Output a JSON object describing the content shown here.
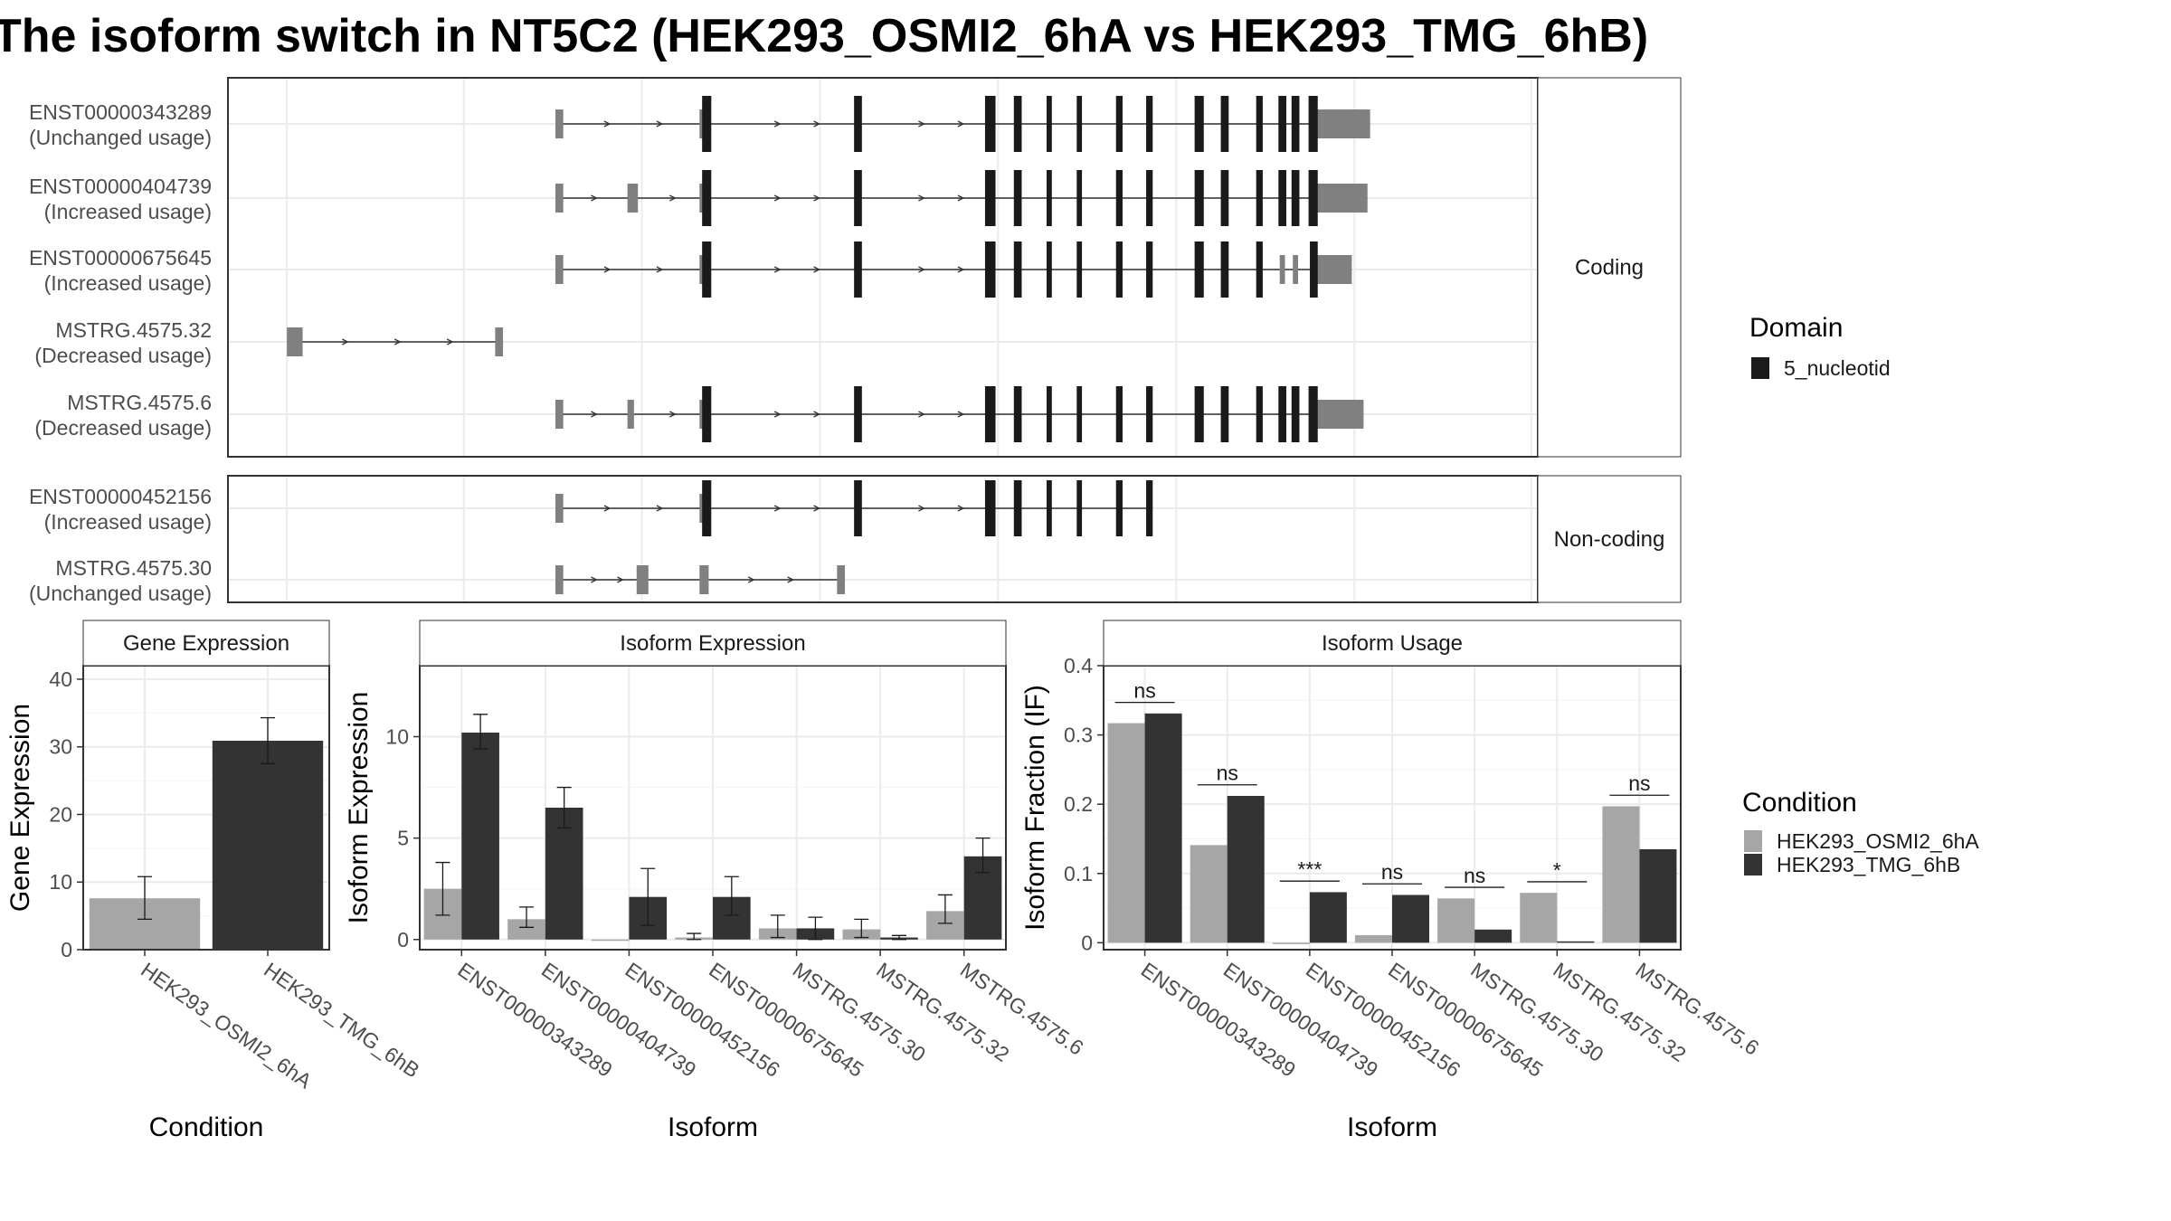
{
  "title": "The isoform switch in NT5C2 (HEK293_OSMI2_6hA vs HEK293_TMG_6hB)",
  "colors": {
    "condition_a": "#a6a6a6",
    "condition_b": "#333333",
    "domain": "#1a1a1a",
    "exon": "#808080",
    "strip_bg": "#ffffff",
    "grid": "#ebebeb"
  },
  "chart_data": [
    {
      "type": "gene-structure",
      "panels": [
        {
          "strip_label": "Coding",
          "isoforms": [
            {
              "id": "ENST00000343289",
              "usage": "(Unchanged usage)",
              "utr": [
                [
                  0.25,
                  0.256
                ],
                [
                  0.36,
                  0.364
                ],
                [
                  0.83,
                  0.872
                ]
              ],
              "exons": [
                [
                  0.362,
                  0.369
                ],
                [
                  0.478,
                  0.484
                ],
                [
                  0.578,
                  0.586
                ],
                [
                  0.6,
                  0.606
                ],
                [
                  0.625,
                  0.629
                ],
                [
                  0.648,
                  0.652
                ],
                [
                  0.678,
                  0.683
                ],
                [
                  0.701,
                  0.706
                ],
                [
                  0.738,
                  0.745
                ],
                [
                  0.758,
                  0.764
                ],
                [
                  0.785,
                  0.79
                ],
                [
                  0.802,
                  0.808
                ],
                [
                  0.812,
                  0.818
                ],
                [
                  0.825,
                  0.832
                ]
              ],
              "arrows": [
                0.29,
                0.33,
                0.42,
                0.45,
                0.53,
                0.56
              ]
            },
            {
              "id": "ENST00000404739",
              "usage": "(Increased usage)",
              "utr": [
                [
                  0.25,
                  0.256
                ],
                [
                  0.305,
                  0.313
                ],
                [
                  0.36,
                  0.364
                ],
                [
                  0.83,
                  0.87
                ]
              ],
              "exons": [
                [
                  0.362,
                  0.369
                ],
                [
                  0.478,
                  0.484
                ],
                [
                  0.578,
                  0.586
                ],
                [
                  0.6,
                  0.606
                ],
                [
                  0.625,
                  0.629
                ],
                [
                  0.648,
                  0.652
                ],
                [
                  0.678,
                  0.683
                ],
                [
                  0.701,
                  0.706
                ],
                [
                  0.738,
                  0.745
                ],
                [
                  0.758,
                  0.764
                ],
                [
                  0.785,
                  0.79
                ],
                [
                  0.802,
                  0.808
                ],
                [
                  0.812,
                  0.818
                ],
                [
                  0.825,
                  0.832
                ]
              ],
              "arrows": [
                0.28,
                0.34,
                0.42,
                0.45,
                0.53,
                0.56
              ]
            },
            {
              "id": "ENST00000675645",
              "usage": "(Increased usage)",
              "utr": [
                [
                  0.25,
                  0.256
                ],
                [
                  0.36,
                  0.364
                ],
                [
                  0.803,
                  0.807
                ],
                [
                  0.813,
                  0.817
                ],
                [
                  0.83,
                  0.858
                ]
              ],
              "exons": [
                [
                  0.362,
                  0.369
                ],
                [
                  0.478,
                  0.484
                ],
                [
                  0.578,
                  0.586
                ],
                [
                  0.6,
                  0.606
                ],
                [
                  0.625,
                  0.629
                ],
                [
                  0.648,
                  0.652
                ],
                [
                  0.678,
                  0.683
                ],
                [
                  0.701,
                  0.706
                ],
                [
                  0.738,
                  0.745
                ],
                [
                  0.758,
                  0.764
                ],
                [
                  0.785,
                  0.79
                ],
                [
                  0.826,
                  0.832
                ]
              ],
              "arrows": [
                0.29,
                0.33,
                0.42,
                0.45,
                0.53,
                0.56
              ]
            },
            {
              "id": "MSTRG.4575.32",
              "usage": "(Decreased usage)",
              "utr": [
                [
                  0.045,
                  0.057
                ],
                [
                  0.204,
                  0.21
                ]
              ],
              "exons": [],
              "arrows": [
                0.09,
                0.13,
                0.17
              ]
            },
            {
              "id": "MSTRG.4575.6",
              "usage": "(Decreased usage)",
              "utr": [
                [
                  0.25,
                  0.256
                ],
                [
                  0.305,
                  0.31
                ],
                [
                  0.36,
                  0.364
                ],
                [
                  0.83,
                  0.867
                ]
              ],
              "exons": [
                [
                  0.362,
                  0.369
                ],
                [
                  0.478,
                  0.484
                ],
                [
                  0.578,
                  0.586
                ],
                [
                  0.6,
                  0.606
                ],
                [
                  0.625,
                  0.629
                ],
                [
                  0.648,
                  0.652
                ],
                [
                  0.678,
                  0.683
                ],
                [
                  0.701,
                  0.706
                ],
                [
                  0.738,
                  0.745
                ],
                [
                  0.758,
                  0.764
                ],
                [
                  0.785,
                  0.79
                ],
                [
                  0.802,
                  0.808
                ],
                [
                  0.812,
                  0.818
                ],
                [
                  0.825,
                  0.832
                ]
              ],
              "arrows": [
                0.28,
                0.34,
                0.42,
                0.45,
                0.53,
                0.56
              ]
            }
          ]
        },
        {
          "strip_label": "Non-coding",
          "isoforms": [
            {
              "id": "ENST00000452156",
              "usage": "(Increased usage)",
              "utr": [
                [
                  0.25,
                  0.256
                ],
                [
                  0.36,
                  0.364
                ]
              ],
              "exons": [
                [
                  0.362,
                  0.369
                ],
                [
                  0.478,
                  0.484
                ],
                [
                  0.578,
                  0.586
                ],
                [
                  0.6,
                  0.606
                ],
                [
                  0.625,
                  0.629
                ],
                [
                  0.648,
                  0.652
                ],
                [
                  0.678,
                  0.683
                ],
                [
                  0.701,
                  0.706
                ]
              ],
              "arrows": [
                0.29,
                0.33,
                0.42,
                0.45,
                0.53,
                0.56
              ]
            },
            {
              "id": "MSTRG.4575.30",
              "usage": "(Unchanged usage)",
              "utr": [
                [
                  0.25,
                  0.256
                ],
                [
                  0.312,
                  0.321
                ],
                [
                  0.36,
                  0.367
                ],
                [
                  0.465,
                  0.471
                ]
              ],
              "exons": [],
              "arrows": [
                0.28,
                0.3,
                0.4,
                0.43
              ]
            }
          ]
        }
      ],
      "legend": {
        "title": "Domain",
        "entries": [
          "5_nucleotid"
        ]
      }
    },
    {
      "type": "bar",
      "strip_label": "Gene Expression",
      "xlabel": "Condition",
      "ylabel": "Gene Expression",
      "ylim": [
        0,
        42
      ],
      "yticks": [
        0,
        10,
        20,
        30,
        40
      ],
      "categories": [
        "HEK293_OSMI2_6hA",
        "HEK293_TMG_6hB"
      ],
      "values": [
        7.6,
        30.9
      ],
      "errors": [
        [
          4.5,
          10.8
        ],
        [
          27.5,
          34.3
        ]
      ]
    },
    {
      "type": "bar",
      "strip_label": "Isoform Expression",
      "xlabel": "Isoform",
      "ylabel": "Isoform Expression",
      "ylim": [
        -0.5,
        13.5
      ],
      "yticks": [
        0,
        5,
        10
      ],
      "categories": [
        "ENST00000343289",
        "ENST00000404739",
        "ENST00000452156",
        "ENST00000675645",
        "MSTRG.4575.30",
        "MSTRG.4575.32",
        "MSTRG.4575.6"
      ],
      "series": [
        {
          "name": "HEK293_OSMI2_6hA",
          "values": [
            2.5,
            1.0,
            0.0,
            0.1,
            0.55,
            0.5,
            1.4
          ],
          "errors": [
            [
              1.2,
              3.8
            ],
            [
              0.6,
              1.6
            ],
            [
              0.0,
              0.0
            ],
            [
              0.0,
              0.3
            ],
            [
              0.1,
              1.2
            ],
            [
              0.1,
              1.0
            ],
            [
              0.8,
              2.2
            ]
          ]
        },
        {
          "name": "HEK293_TMG_6hB",
          "values": [
            10.2,
            6.5,
            2.1,
            2.1,
            0.55,
            0.1,
            4.1
          ],
          "errors": [
            [
              9.4,
              11.1
            ],
            [
              5.5,
              7.5
            ],
            [
              0.7,
              3.5
            ],
            [
              1.2,
              3.1
            ],
            [
              0.0,
              1.1
            ],
            [
              0.0,
              0.2
            ],
            [
              3.3,
              5.0
            ]
          ]
        }
      ]
    },
    {
      "type": "bar",
      "strip_label": "Isoform Usage",
      "xlabel": "Isoform",
      "ylabel": "Isoform Fraction (IF)",
      "ylim": [
        -0.01,
        0.4
      ],
      "yticks": [
        0.0,
        0.1,
        0.2,
        0.3,
        0.4
      ],
      "categories": [
        "ENST00000343289",
        "ENST00000404739",
        "ENST00000452156",
        "ENST00000675645",
        "MSTRG.4575.30",
        "MSTRG.4575.32",
        "MSTRG.4575.6"
      ],
      "series": [
        {
          "name": "HEK293_OSMI2_6hA",
          "values": [
            0.317,
            0.141,
            0.0,
            0.011,
            0.064,
            0.072,
            0.197
          ]
        },
        {
          "name": "HEK293_TMG_6hB",
          "values": [
            0.331,
            0.212,
            0.073,
            0.069,
            0.019,
            0.002,
            0.135
          ]
        }
      ],
      "significance": [
        "ns",
        "ns",
        "***",
        "ns",
        "ns",
        "*",
        "ns"
      ],
      "significance_y": [
        0.347,
        0.228,
        0.089,
        0.085,
        0.08,
        0.088,
        0.213
      ]
    }
  ],
  "condition_legend": {
    "title": "Condition",
    "entries": [
      "HEK293_OSMI2_6hA",
      "HEK293_TMG_6hB"
    ]
  }
}
